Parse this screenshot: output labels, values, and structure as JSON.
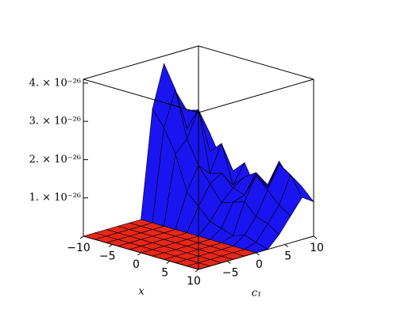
{
  "chart_data": {
    "type": "surface",
    "x_label": "x",
    "y_label": "c₁",
    "x": [
      -10,
      -8,
      -6,
      -4,
      -2,
      0,
      2,
      4,
      6,
      8,
      10
    ],
    "y": [
      -10,
      -8,
      -6,
      -4,
      -2,
      0,
      2,
      4,
      6,
      8,
      10
    ],
    "z": [
      [
        0,
        0,
        0,
        0,
        0,
        0,
        2.8e-26,
        3.9e-26,
        3.1e-26,
        2.5e-26,
        2e-26
      ],
      [
        0,
        0,
        0,
        0,
        0,
        0,
        2.4e-26,
        3.3e-26,
        2.2e-26,
        2.6e-26,
        1.9e-26
      ],
      [
        0,
        0,
        0,
        0,
        0,
        0,
        1.8e-26,
        2.1e-26,
        2.8e-26,
        1.6e-26,
        1.3e-26
      ],
      [
        0,
        0,
        0,
        0,
        0,
        0,
        9e-27,
        1.5e-26,
        1.2e-26,
        1.9e-26,
        1.1e-26
      ],
      [
        0,
        0,
        0,
        0,
        0,
        0,
        6e-27,
        1.1e-26,
        1.3e-26,
        9e-27,
        1.4e-26
      ],
      [
        0,
        0,
        0,
        0,
        0,
        0,
        3e-27,
        7e-27,
        1e-26,
        1.2e-26,
        8e-27
      ],
      [
        0,
        0,
        0,
        0,
        0,
        0,
        2e-27,
        8e-27,
        9e-27,
        1.4e-26,
        1e-26
      ],
      [
        0,
        0,
        0,
        0,
        0,
        0,
        1e-27,
        9e-27,
        1.5e-26,
        1.1e-26,
        1.7e-26
      ],
      [
        0,
        0,
        0,
        0,
        0,
        0,
        2e-27,
        6e-27,
        1.2e-26,
        1.8e-26,
        1.3e-26
      ],
      [
        0,
        0,
        0,
        0,
        0,
        0,
        1e-27,
        5e-27,
        9e-27,
        1.6e-26,
        1.2e-26
      ],
      [
        0,
        0,
        0,
        0,
        0,
        0,
        0,
        3e-27,
        7e-27,
        1.1e-26,
        9e-27
      ]
    ],
    "xlim": [
      -10,
      10
    ],
    "ylim": [
      -10,
      10
    ],
    "zlim": [
      0,
      4.1e-26
    ],
    "xticks": [
      {
        "value": -10,
        "label": "−10"
      },
      {
        "value": -5,
        "label": "−5"
      },
      0,
      5,
      10
    ],
    "yticks": [
      {
        "value": -5,
        "label": "−5"
      },
      0,
      5,
      10
    ],
    "zticks": [
      {
        "value": 1e-26,
        "label": "1. × 10⁻²⁶"
      },
      {
        "value": 2e-26,
        "label": "2. × 10⁻²⁶"
      },
      {
        "value": 3e-26,
        "label": "3. × 10⁻²⁶"
      },
      {
        "value": 4e-26,
        "label": "4. × 10⁻²⁶"
      }
    ],
    "low_color": "#e8261a",
    "high_color": "#1a14f0",
    "mesh_color": "#000000"
  }
}
